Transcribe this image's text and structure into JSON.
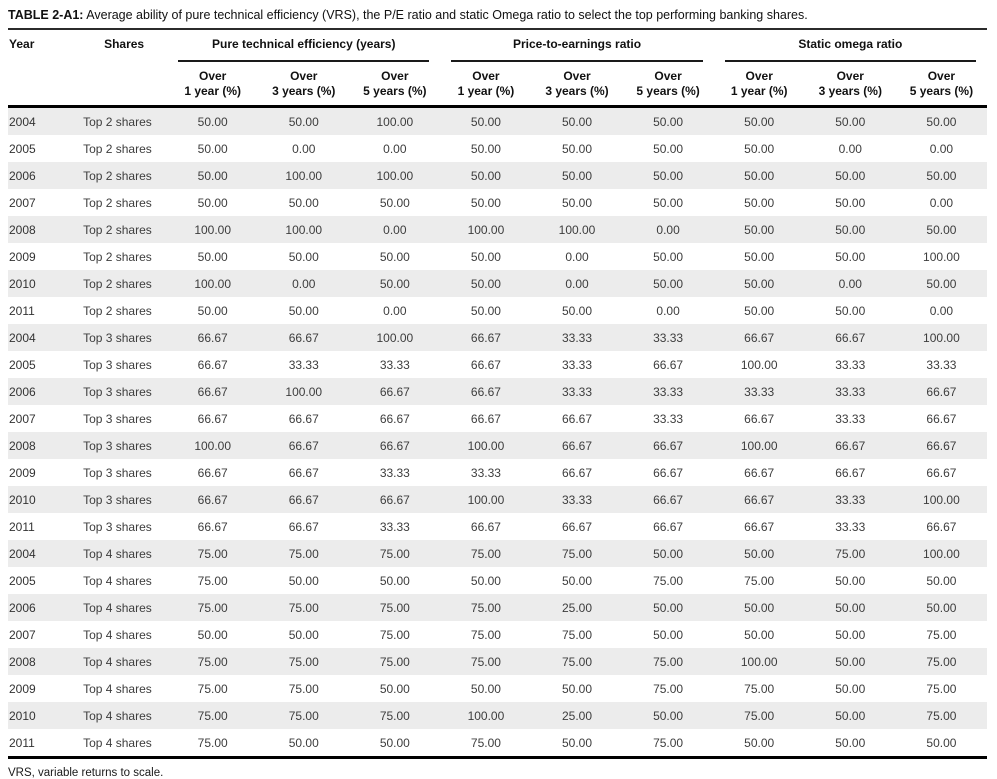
{
  "title": {
    "label": "TABLE 2-A1:",
    "text": " Average ability of pure technical efficiency (VRS), the P/E ratio and static Omega ratio to select the top performing banking shares."
  },
  "footnote": "VRS, variable returns to scale.",
  "table": {
    "columns": {
      "year": "Year",
      "shares": "Shares",
      "groups": [
        {
          "label": "Pure technical efficiency (years)"
        },
        {
          "label": "Price-to-earnings ratio"
        },
        {
          "label": "Static omega ratio"
        }
      ],
      "sub": [
        "Over\n1 year (%)",
        "Over\n3 years (%)",
        "Over\n5 years (%)"
      ]
    },
    "rows": [
      {
        "year": "2004",
        "shares": "Top 2 shares",
        "values": [
          "50.00",
          "50.00",
          "100.00",
          "50.00",
          "50.00",
          "50.00",
          "50.00",
          "50.00",
          "50.00"
        ]
      },
      {
        "year": "2005",
        "shares": "Top 2 shares",
        "values": [
          "50.00",
          "0.00",
          "0.00",
          "50.00",
          "50.00",
          "50.00",
          "50.00",
          "0.00",
          "0.00"
        ]
      },
      {
        "year": "2006",
        "shares": "Top 2 shares",
        "values": [
          "50.00",
          "100.00",
          "100.00",
          "50.00",
          "50.00",
          "50.00",
          "50.00",
          "50.00",
          "50.00"
        ]
      },
      {
        "year": "2007",
        "shares": "Top 2 shares",
        "values": [
          "50.00",
          "50.00",
          "50.00",
          "50.00",
          "50.00",
          "50.00",
          "50.00",
          "50.00",
          "0.00"
        ]
      },
      {
        "year": "2008",
        "shares": "Top 2 shares",
        "values": [
          "100.00",
          "100.00",
          "0.00",
          "100.00",
          "100.00",
          "0.00",
          "50.00",
          "50.00",
          "50.00"
        ]
      },
      {
        "year": "2009",
        "shares": "Top 2 shares",
        "values": [
          "50.00",
          "50.00",
          "50.00",
          "50.00",
          "0.00",
          "50.00",
          "50.00",
          "50.00",
          "100.00"
        ]
      },
      {
        "year": "2010",
        "shares": "Top 2 shares",
        "values": [
          "100.00",
          "0.00",
          "50.00",
          "50.00",
          "0.00",
          "50.00",
          "50.00",
          "0.00",
          "50.00"
        ]
      },
      {
        "year": "2011",
        "shares": "Top 2 shares",
        "values": [
          "50.00",
          "50.00",
          "0.00",
          "50.00",
          "50.00",
          "0.00",
          "50.00",
          "50.00",
          "0.00"
        ]
      },
      {
        "year": "2004",
        "shares": "Top 3 shares",
        "values": [
          "66.67",
          "66.67",
          "100.00",
          "66.67",
          "33.33",
          "33.33",
          "66.67",
          "66.67",
          "100.00"
        ]
      },
      {
        "year": "2005",
        "shares": "Top 3 shares",
        "values": [
          "66.67",
          "33.33",
          "33.33",
          "66.67",
          "33.33",
          "66.67",
          "100.00",
          "33.33",
          "33.33"
        ]
      },
      {
        "year": "2006",
        "shares": "Top 3 shares",
        "values": [
          "66.67",
          "100.00",
          "66.67",
          "66.67",
          "33.33",
          "33.33",
          "33.33",
          "33.33",
          "66.67"
        ]
      },
      {
        "year": "2007",
        "shares": "Top 3 shares",
        "values": [
          "66.67",
          "66.67",
          "66.67",
          "66.67",
          "66.67",
          "33.33",
          "66.67",
          "33.33",
          "66.67"
        ]
      },
      {
        "year": "2008",
        "shares": "Top 3 shares",
        "values": [
          "100.00",
          "66.67",
          "66.67",
          "100.00",
          "66.67",
          "66.67",
          "100.00",
          "66.67",
          "66.67"
        ]
      },
      {
        "year": "2009",
        "shares": "Top 3 shares",
        "values": [
          "66.67",
          "66.67",
          "33.33",
          "33.33",
          "66.67",
          "66.67",
          "66.67",
          "66.67",
          "66.67"
        ]
      },
      {
        "year": "2010",
        "shares": "Top 3 shares",
        "values": [
          "66.67",
          "66.67",
          "66.67",
          "100.00",
          "33.33",
          "66.67",
          "66.67",
          "33.33",
          "100.00"
        ]
      },
      {
        "year": "2011",
        "shares": "Top 3 shares",
        "values": [
          "66.67",
          "66.67",
          "33.33",
          "66.67",
          "66.67",
          "66.67",
          "66.67",
          "33.33",
          "66.67"
        ]
      },
      {
        "year": "2004",
        "shares": "Top 4 shares",
        "values": [
          "75.00",
          "75.00",
          "75.00",
          "75.00",
          "75.00",
          "50.00",
          "50.00",
          "75.00",
          "100.00"
        ]
      },
      {
        "year": "2005",
        "shares": "Top 4 shares",
        "values": [
          "75.00",
          "50.00",
          "50.00",
          "50.00",
          "50.00",
          "75.00",
          "75.00",
          "50.00",
          "50.00"
        ]
      },
      {
        "year": "2006",
        "shares": "Top 4 shares",
        "values": [
          "75.00",
          "75.00",
          "75.00",
          "75.00",
          "25.00",
          "50.00",
          "50.00",
          "50.00",
          "50.00"
        ]
      },
      {
        "year": "2007",
        "shares": "Top 4 shares",
        "values": [
          "50.00",
          "50.00",
          "75.00",
          "75.00",
          "75.00",
          "50.00",
          "50.00",
          "50.00",
          "75.00"
        ]
      },
      {
        "year": "2008",
        "shares": "Top 4 shares",
        "values": [
          "75.00",
          "75.00",
          "75.00",
          "75.00",
          "75.00",
          "75.00",
          "100.00",
          "50.00",
          "75.00"
        ]
      },
      {
        "year": "2009",
        "shares": "Top 4 shares",
        "values": [
          "75.00",
          "75.00",
          "50.00",
          "50.00",
          "50.00",
          "75.00",
          "75.00",
          "50.00",
          "75.00"
        ]
      },
      {
        "year": "2010",
        "shares": "Top 4 shares",
        "values": [
          "75.00",
          "75.00",
          "75.00",
          "100.00",
          "25.00",
          "50.00",
          "75.00",
          "50.00",
          "75.00"
        ]
      },
      {
        "year": "2011",
        "shares": "Top 4 shares",
        "values": [
          "75.00",
          "50.00",
          "50.00",
          "75.00",
          "50.00",
          "75.00",
          "50.00",
          "50.00",
          "50.00"
        ]
      }
    ]
  }
}
